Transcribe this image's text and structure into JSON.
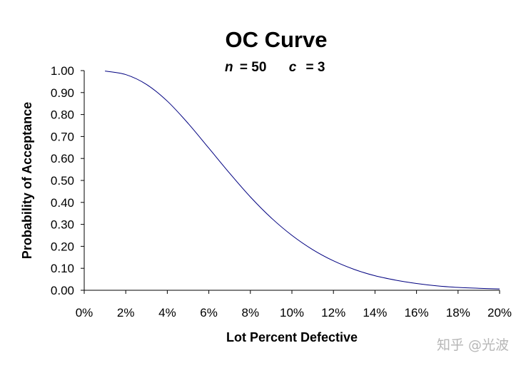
{
  "chart_data": {
    "type": "line",
    "title": "OC Curve",
    "subtitle": {
      "n_label": "n",
      "n_value": "= 50",
      "c_label": "c",
      "c_value": "= 3"
    },
    "xlabel": "Lot Percent Defective",
    "ylabel": "Probability of Acceptance",
    "xlim": [
      0,
      20
    ],
    "ylim": [
      0,
      1
    ],
    "x_tick_labels": [
      "0%",
      "2%",
      "4%",
      "6%",
      "8%",
      "10%",
      "12%",
      "14%",
      "16%",
      "18%",
      "20%"
    ],
    "y_tick_labels": [
      "0.00",
      "0.10",
      "0.20",
      "0.30",
      "0.40",
      "0.50",
      "0.60",
      "0.70",
      "0.80",
      "0.90",
      "1.00"
    ],
    "grid": false,
    "series": [
      {
        "name": "OC Curve",
        "color": "#000080",
        "x": [
          1,
          2,
          3,
          4,
          5,
          6,
          7,
          8,
          9,
          10,
          11,
          12,
          13,
          14,
          15,
          16,
          17,
          18,
          19,
          20
        ],
        "y": [
          0.998,
          0.982,
          0.937,
          0.861,
          0.76,
          0.647,
          0.533,
          0.425,
          0.33,
          0.25,
          0.185,
          0.134,
          0.095,
          0.066,
          0.046,
          0.031,
          0.02,
          0.013,
          0.009,
          0.006
        ]
      }
    ]
  },
  "watermark": "知乎 @光波"
}
